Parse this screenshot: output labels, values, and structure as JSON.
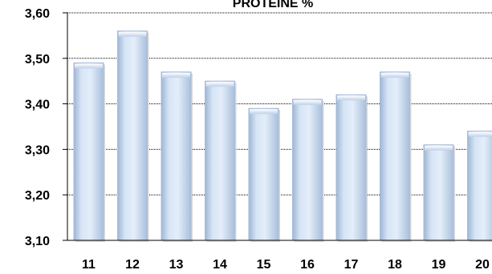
{
  "chart_data": {
    "type": "bar",
    "title": "PROTEINE %",
    "xlabel": "",
    "ylabel": "",
    "categories": [
      "11",
      "12",
      "13",
      "14",
      "15",
      "16",
      "17",
      "18",
      "19",
      "20"
    ],
    "values": [
      3.49,
      3.56,
      3.47,
      3.45,
      3.39,
      3.41,
      3.42,
      3.47,
      3.31,
      3.34
    ],
    "ylim": [
      3.1,
      3.6
    ],
    "yticks": [
      "3,10",
      "3,20",
      "3,30",
      "3,40",
      "3,50",
      "3,60"
    ],
    "grid": true,
    "colors": {
      "bar_fill": "#c6d9f1",
      "bar_edge": "#a6bbd6",
      "grid": "#000000"
    }
  }
}
